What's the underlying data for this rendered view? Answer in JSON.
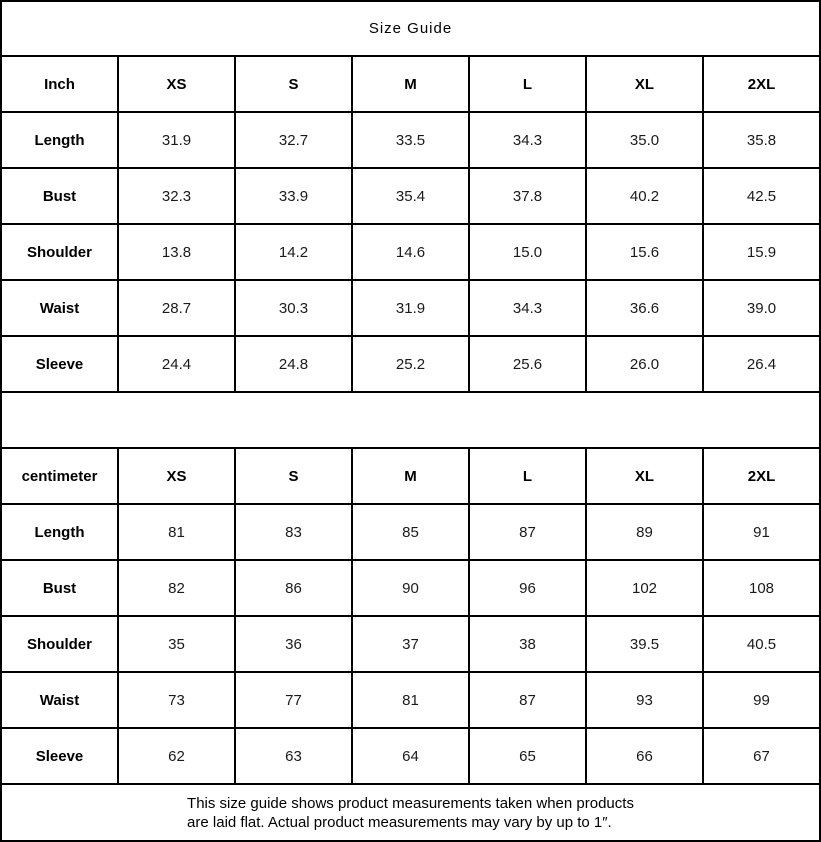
{
  "title": "Size Guide",
  "inch": {
    "unit": "Inch",
    "sizes": [
      "XS",
      "S",
      "M",
      "L",
      "XL",
      "2XL"
    ],
    "rows": [
      {
        "label": "Length",
        "values": [
          "31.9",
          "32.7",
          "33.5",
          "34.3",
          "35.0",
          "35.8"
        ]
      },
      {
        "label": "Bust",
        "values": [
          "32.3",
          "33.9",
          "35.4",
          "37.8",
          "40.2",
          "42.5"
        ]
      },
      {
        "label": "Shoulder",
        "values": [
          "13.8",
          "14.2",
          "14.6",
          "15.0",
          "15.6",
          "15.9"
        ]
      },
      {
        "label": "Waist",
        "values": [
          "28.7",
          "30.3",
          "31.9",
          "34.3",
          "36.6",
          "39.0"
        ]
      },
      {
        "label": "Sleeve",
        "values": [
          "24.4",
          "24.8",
          "25.2",
          "25.6",
          "26.0",
          "26.4"
        ]
      }
    ]
  },
  "cm": {
    "unit": "centimeter",
    "sizes": [
      "XS",
      "S",
      "M",
      "L",
      "XL",
      "2XL"
    ],
    "rows": [
      {
        "label": "Length",
        "values": [
          "81",
          "83",
          "85",
          "87",
          "89",
          "91"
        ]
      },
      {
        "label": "Bust",
        "values": [
          "82",
          "86",
          "90",
          "96",
          "102",
          "108"
        ]
      },
      {
        "label": "Shoulder",
        "values": [
          "35",
          "36",
          "37",
          "38",
          "39.5",
          "40.5"
        ]
      },
      {
        "label": "Waist",
        "values": [
          "73",
          "77",
          "81",
          "87",
          "93",
          "99"
        ]
      },
      {
        "label": "Sleeve",
        "values": [
          "62",
          "63",
          "64",
          "65",
          "66",
          "67"
        ]
      }
    ]
  },
  "note": {
    "line1": "This size guide shows product measurements taken when products",
    "line2": "are laid flat. Actual product measurements may vary by up to 1″."
  }
}
